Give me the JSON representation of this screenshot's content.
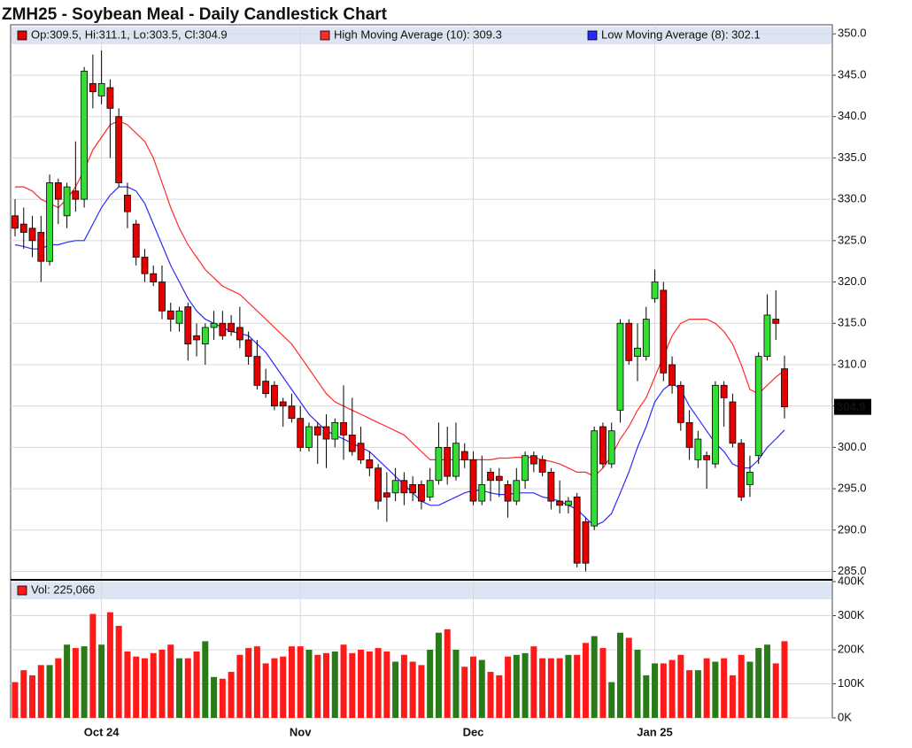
{
  "chart_data": [
    {
      "type": "candlestick",
      "title": "ZMH25 - Soybean Meal - Daily Candlestick Chart",
      "legend_label": "Op:309.5, Hi:311.1, Lo:303.5, Cl:304.9",
      "categories": [
        null,
        null,
        null,
        null,
        null,
        null,
        null,
        null,
        null,
        null,
        "Oct 24",
        null,
        null,
        null,
        null,
        null,
        null,
        null,
        null,
        null,
        null,
        null,
        null,
        null,
        null,
        null,
        null,
        null,
        null,
        null,
        null,
        null,
        null,
        "Nov",
        null,
        null,
        null,
        null,
        null,
        null,
        null,
        null,
        null,
        null,
        null,
        null,
        null,
        null,
        null,
        null,
        null,
        null,
        null,
        "Dec",
        null,
        null,
        null,
        null,
        null,
        null,
        null,
        null,
        null,
        null,
        null,
        null,
        null,
        null,
        null,
        null,
        null,
        null,
        null,
        null,
        "Jan 25",
        null,
        null,
        null,
        null,
        null,
        null,
        null,
        null,
        null,
        null,
        null,
        null,
        null,
        null,
        null
      ],
      "open": [
        328,
        327,
        326.5,
        326,
        322.5,
        332,
        328,
        331,
        330,
        344,
        342.5,
        343.5,
        340,
        330.5,
        327,
        323,
        321,
        320,
        316.5,
        315,
        317,
        313.5,
        312.5,
        314.5,
        315,
        315,
        314.5,
        313,
        311,
        308,
        307.5,
        305.5,
        305,
        303.5,
        300,
        302.5,
        302.5,
        301,
        303,
        301.5,
        300.5,
        298.5,
        297.5,
        294.5,
        294.5,
        296,
        295.5,
        295.5,
        294,
        296,
        300,
        296.5,
        299.5,
        298.5,
        293.5,
        297,
        296.5,
        295.5,
        293.5,
        296,
        299,
        298.5,
        297,
        293.5,
        293,
        294,
        291,
        290.5,
        302.5,
        298,
        304.5,
        315,
        311,
        311,
        318,
        319,
        310,
        307.5,
        303,
        298.5,
        299,
        298,
        307.5,
        305.5,
        300.5,
        295.5,
        299,
        311,
        315.5,
        309.5
      ],
      "high": [
        330,
        329,
        328,
        328,
        333,
        332.5,
        332,
        337,
        346,
        347.5,
        348,
        344.5,
        341,
        332,
        327.5,
        324,
        322,
        322,
        317.5,
        317,
        317.5,
        315,
        315,
        316.5,
        316.5,
        316,
        317,
        314,
        313,
        309.5,
        308,
        306,
        306.5,
        305,
        303,
        303,
        304,
        303.5,
        307.5,
        306,
        302.5,
        299.5,
        298,
        297,
        297.5,
        297,
        296.5,
        296,
        297.5,
        303,
        302.5,
        303,
        300.5,
        299.5,
        299,
        297.5,
        297.5,
        296,
        297.5,
        299.5,
        299.5,
        299,
        297.5,
        296,
        294,
        294.5,
        291.5,
        302.5,
        303,
        303,
        315.5,
        315.5,
        315,
        317,
        321.5,
        320,
        311,
        308,
        304.5,
        302,
        299.5,
        308,
        308,
        306.5,
        301,
        299,
        311.5,
        318.5,
        319,
        311.1
      ],
      "low": [
        325.5,
        324,
        323,
        320,
        322,
        327,
        326.5,
        328.5,
        329,
        341,
        341.5,
        335,
        331.5,
        326.5,
        322,
        320,
        319.5,
        315.5,
        314,
        314,
        310.5,
        311,
        310,
        313,
        313,
        313.5,
        312,
        310,
        307,
        306,
        304.5,
        302.5,
        303,
        299.5,
        299.5,
        298,
        297.5,
        300,
        298.5,
        299,
        298,
        296.5,
        292.5,
        291,
        293.5,
        293,
        293.5,
        292.5,
        293.5,
        295.5,
        295.5,
        296,
        297.5,
        293,
        293,
        293.5,
        294,
        291.5,
        293,
        295,
        297,
        296.5,
        292.5,
        292,
        292,
        285.5,
        285,
        290,
        297.5,
        297.5,
        303,
        310,
        308,
        310.5,
        317.5,
        308,
        306.5,
        302,
        298.5,
        297.5,
        295,
        297.5,
        302.5,
        300,
        293.5,
        294,
        298,
        310.5,
        313,
        303.5
      ],
      "close": [
        326.5,
        326,
        325,
        322.5,
        332,
        330,
        331.5,
        330,
        345.5,
        343,
        344,
        341,
        332,
        328.5,
        323,
        321,
        320,
        316.5,
        315.5,
        316.5,
        312.5,
        313,
        314.5,
        315,
        313.5,
        314,
        313,
        311,
        307.5,
        306.5,
        305,
        305,
        303.5,
        300,
        302.5,
        301.5,
        301,
        303,
        301.5,
        299.5,
        298.5,
        297.5,
        293.5,
        294,
        296,
        294.5,
        294.5,
        293.5,
        296,
        300,
        296.5,
        300.5,
        298.5,
        293.5,
        295.5,
        296,
        296,
        293.5,
        296,
        299,
        298,
        297,
        293.5,
        293,
        293.5,
        286,
        286,
        302,
        298,
        302,
        315,
        310.5,
        312,
        315.5,
        320,
        309,
        307.5,
        303,
        300,
        301,
        298.5,
        307.5,
        306,
        300.5,
        294,
        297,
        311,
        316,
        315,
        304.9
      ],
      "up_color": "#33dd33",
      "down_color": "#e60000",
      "series": [
        {
          "name": "High Moving Average (10): 309.3",
          "color": "#ff2a2a",
          "values": [
            331.5,
            331.5,
            331,
            330,
            329.5,
            329,
            330,
            331.5,
            333.5,
            336,
            337.5,
            339,
            339.5,
            339,
            338,
            337,
            335,
            332,
            329,
            326.5,
            324.5,
            323,
            321.5,
            320.5,
            319.5,
            319,
            318.5,
            317.5,
            316.5,
            315.5,
            314.5,
            313.5,
            312.5,
            311,
            309.5,
            308,
            306.5,
            305.5,
            305,
            304.5,
            304,
            303.5,
            303,
            302.5,
            302,
            301.5,
            300.5,
            299.5,
            298.5,
            298.5,
            298.5,
            298.5,
            298.5,
            298.5,
            298.5,
            298.5,
            298.7,
            298.7,
            298.8,
            298.8,
            298.8,
            298.5,
            298.3,
            298,
            297.5,
            297,
            297,
            296.5,
            297.5,
            299,
            301,
            302.5,
            304.5,
            306,
            308.5,
            311,
            313.5,
            315,
            315.5,
            315.5,
            315.5,
            315,
            314,
            312.5,
            310,
            307,
            306.5,
            307.5,
            308.5,
            309.3
          ]
        },
        {
          "name": "Low Moving Average (8): 302.1",
          "color": "#2a2aff",
          "values": [
            324.5,
            324.3,
            324,
            324,
            324.5,
            324.5,
            324.8,
            325,
            325,
            327,
            329,
            330.5,
            331.5,
            331.5,
            331,
            329.5,
            327,
            324.5,
            322,
            320,
            318,
            316.5,
            315.5,
            315,
            314.5,
            314,
            313.8,
            313.5,
            312.5,
            311.5,
            310,
            308.5,
            307,
            305.5,
            304,
            303,
            302,
            301.5,
            301,
            300.5,
            300,
            299.5,
            298.5,
            297.5,
            296.5,
            295.5,
            294.5,
            293.5,
            293,
            293,
            293.5,
            294,
            294.5,
            294.8,
            294.8,
            294.5,
            294.3,
            294.3,
            294.5,
            294.5,
            294.5,
            294,
            293.8,
            293.5,
            293,
            292.5,
            291.5,
            290.5,
            291,
            292,
            294.5,
            297,
            300,
            302.5,
            305.5,
            307,
            307.8,
            307,
            305,
            303.5,
            302,
            300.5,
            299.5,
            298,
            297.5,
            297.5,
            298.5,
            300,
            301,
            302.1
          ]
        }
      ],
      "ylim": [
        284.2,
        351.1
      ],
      "yticks": [
        {
          "value": 285,
          "label": "285.0"
        },
        {
          "value": 290,
          "label": "290.0"
        },
        {
          "value": 295,
          "label": "295.0"
        },
        {
          "value": 300,
          "label": "300.0"
        },
        {
          "value": 305,
          "label": "305.0"
        },
        {
          "value": 310,
          "label": "310.0"
        },
        {
          "value": 315,
          "label": "315.0"
        },
        {
          "value": 320,
          "label": "320.0"
        },
        {
          "value": 325,
          "label": "325.0"
        },
        {
          "value": 330,
          "label": "330.0"
        },
        {
          "value": 335,
          "label": "335.0"
        },
        {
          "value": 340,
          "label": "340.0"
        },
        {
          "value": 345,
          "label": "345.0"
        },
        {
          "value": 350,
          "label": "350.0"
        }
      ],
      "grid": true
    },
    {
      "type": "bar",
      "legend_label": "Vol: 225,066",
      "up_color": "#2a7a1a",
      "down_color": "#ff1a1a",
      "values": [
        105000,
        140000,
        125000,
        155000,
        155000,
        175000,
        215000,
        205000,
        210000,
        305000,
        215000,
        310000,
        270000,
        195000,
        180000,
        175000,
        190000,
        200000,
        215000,
        175000,
        175000,
        195000,
        225000,
        120000,
        115000,
        135000,
        185000,
        205000,
        210000,
        160000,
        175000,
        180000,
        210000,
        210000,
        200000,
        185000,
        190000,
        195000,
        215000,
        190000,
        200000,
        195000,
        205000,
        195000,
        165000,
        185000,
        165000,
        155000,
        200000,
        250000,
        260000,
        200000,
        150000,
        180000,
        170000,
        135000,
        125000,
        180000,
        185000,
        190000,
        210000,
        175000,
        175000,
        175000,
        185000,
        185000,
        220000,
        240000,
        205000,
        105000,
        250000,
        235000,
        200000,
        125000,
        160000,
        160000,
        170000,
        185000,
        140000,
        140000,
        175000,
        165000,
        175000,
        125000,
        185000,
        165000,
        205000,
        215000,
        160000,
        225066
      ],
      "ylim": [
        0,
        400000
      ],
      "yticks": [
        {
          "value": 0,
          "label": "0K"
        },
        {
          "value": 100000,
          "label": "100K"
        },
        {
          "value": 200000,
          "label": "200K"
        },
        {
          "value": 300000,
          "label": "300K"
        },
        {
          "value": 400000,
          "label": "400K"
        }
      ],
      "grid": true
    }
  ]
}
